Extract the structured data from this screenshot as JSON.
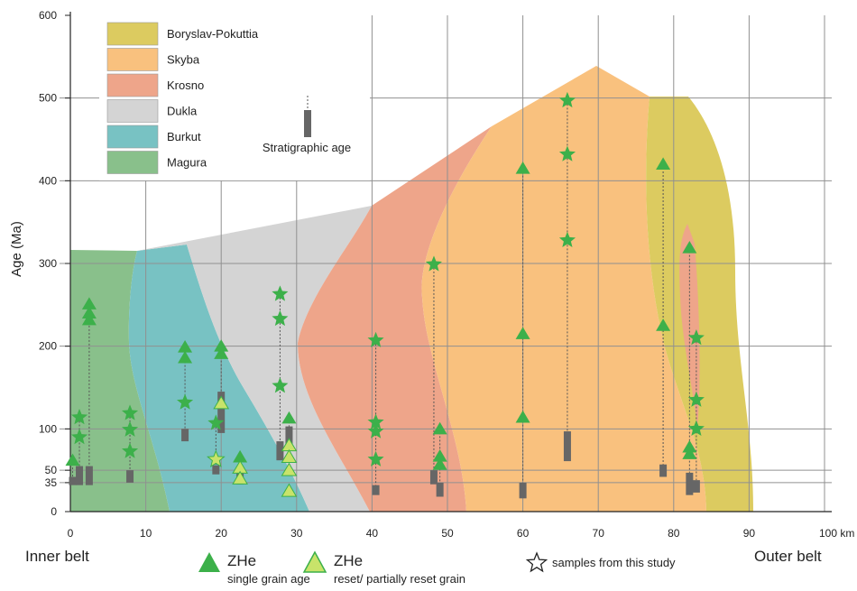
{
  "chart_data": {
    "type": "scatter",
    "ylabel": "Age (Ma)",
    "x_unit": "km",
    "xlim": [
      0,
      100
    ],
    "ylim": [
      0,
      600
    ],
    "x_ticks": [
      0,
      10,
      20,
      30,
      40,
      50,
      60,
      70,
      80,
      90,
      100
    ],
    "y_ticks": [
      0,
      35,
      50,
      100,
      200,
      300,
      400,
      500,
      600
    ],
    "x_tick_labels": [
      "0",
      "10",
      "20",
      "30",
      "40",
      "50",
      "60",
      "70",
      "80",
      "90",
      "100 km"
    ],
    "belt_labels": {
      "left": "Inner belt",
      "right": "Outer belt"
    },
    "legend_units": [
      {
        "name": "Boryslav-Pokuttia",
        "color": "#dccb60"
      },
      {
        "name": "Skyba",
        "color": "#f9c17e"
      },
      {
        "name": "Krosno",
        "color": "#eea58a"
      },
      {
        "name": "Dukla",
        "color": "#d4d4d4"
      },
      {
        "name": "Burkut",
        "color": "#78c2c3"
      },
      {
        "name": "Magura",
        "color": "#89c08b"
      }
    ],
    "legend_strat_label": "Stratigraphic age",
    "bottom_legend": {
      "zhe_single": "ZHe",
      "zhe_single_sub": "single grain age",
      "zhe_reset": "ZHe",
      "zhe_reset_sub": "reset/ partially reset grain",
      "study_samples": "samples from this study"
    },
    "colors": {
      "single": "#3cb04a",
      "reset": "#c8e36a",
      "strat": "#666666",
      "grid": "#909090"
    },
    "samples": [
      {
        "x": 0.3,
        "strat": [
          32,
          42
        ],
        "points": [
          {
            "y": 62,
            "kind": "single",
            "marker": "triangle"
          }
        ]
      },
      {
        "x": 1.2,
        "strat": [
          32,
          55
        ],
        "points": [
          {
            "y": 114,
            "kind": "single",
            "marker": "star"
          },
          {
            "y": 90,
            "kind": "single",
            "marker": "star"
          }
        ]
      },
      {
        "x": 2.5,
        "strat": [
          32,
          55
        ],
        "points": [
          {
            "y": 251,
            "kind": "single",
            "marker": "triangle"
          },
          {
            "y": 240,
            "kind": "single",
            "marker": "triangle"
          },
          {
            "y": 232,
            "kind": "single",
            "marker": "triangle"
          }
        ]
      },
      {
        "x": 7.9,
        "strat": [
          35,
          50
        ],
        "points": [
          {
            "y": 119,
            "kind": "single",
            "marker": "star"
          },
          {
            "y": 99,
            "kind": "single",
            "marker": "star"
          },
          {
            "y": 73,
            "kind": "single",
            "marker": "star"
          }
        ]
      },
      {
        "x": 15.2,
        "strat": [
          85,
          100
        ],
        "points": [
          {
            "y": 199,
            "kind": "single",
            "marker": "triangle"
          },
          {
            "y": 186,
            "kind": "single",
            "marker": "triangle"
          },
          {
            "y": 132,
            "kind": "single",
            "marker": "star"
          }
        ]
      },
      {
        "x": 19.3,
        "strat": [
          45,
          56
        ],
        "points": [
          {
            "y": 107,
            "kind": "single",
            "marker": "star"
          },
          {
            "y": 63,
            "kind": "reset",
            "marker": "star"
          }
        ]
      },
      {
        "x": 20.0,
        "strat": [
          95,
          145
        ],
        "points": [
          {
            "y": 200,
            "kind": "single",
            "marker": "triangle"
          },
          {
            "y": 191,
            "kind": "single",
            "marker": "triangle"
          },
          {
            "y": 131,
            "kind": "reset",
            "marker": "triangle"
          }
        ]
      },
      {
        "x": 22.5,
        "strat": [
          33,
          50
        ],
        "points": [
          {
            "y": 66,
            "kind": "single",
            "marker": "triangle"
          },
          {
            "y": 53,
            "kind": "reset",
            "marker": "triangle"
          },
          {
            "y": 40,
            "kind": "reset",
            "marker": "triangle"
          }
        ]
      },
      {
        "x": 27.8,
        "strat": [
          62,
          85
        ],
        "points": [
          {
            "y": 263,
            "kind": "single",
            "marker": "star"
          },
          {
            "y": 233,
            "kind": "single",
            "marker": "star"
          },
          {
            "y": 152,
            "kind": "single",
            "marker": "star"
          }
        ]
      },
      {
        "x": 29.0,
        "strat": [
          78,
          103
        ],
        "points": [
          {
            "y": 113,
            "kind": "single",
            "marker": "triangle"
          },
          {
            "y": 80,
            "kind": "reset",
            "marker": "triangle"
          },
          {
            "y": 66,
            "kind": "reset",
            "marker": "triangle"
          },
          {
            "y": 50,
            "kind": "reset",
            "marker": "triangle"
          },
          {
            "y": 25,
            "kind": "reset",
            "marker": "triangle"
          }
        ]
      },
      {
        "x": 40.5,
        "strat": [
          20,
          32
        ],
        "points": [
          {
            "y": 207,
            "kind": "single",
            "marker": "star"
          },
          {
            "y": 108,
            "kind": "single",
            "marker": "star"
          },
          {
            "y": 97,
            "kind": "single",
            "marker": "star"
          },
          {
            "y": 63,
            "kind": "single",
            "marker": "star"
          }
        ]
      },
      {
        "x": 48.2,
        "strat": [
          33,
          50
        ],
        "points": [
          {
            "y": 299,
            "kind": "single",
            "marker": "star"
          }
        ]
      },
      {
        "x": 49.0,
        "strat": [
          18,
          35
        ],
        "points": [
          {
            "y": 100,
            "kind": "single",
            "marker": "triangle"
          },
          {
            "y": 67,
            "kind": "single",
            "marker": "triangle"
          },
          {
            "y": 57,
            "kind": "single",
            "marker": "triangle"
          }
        ]
      },
      {
        "x": 60.0,
        "strat": [
          16,
          35
        ],
        "points": [
          {
            "y": 415,
            "kind": "single",
            "marker": "triangle"
          },
          {
            "y": 215,
            "kind": "single",
            "marker": "triangle"
          },
          {
            "y": 114,
            "kind": "single",
            "marker": "triangle"
          }
        ]
      },
      {
        "x": 65.9,
        "strat": [
          61,
          97
        ],
        "points": [
          {
            "y": 497,
            "kind": "single",
            "marker": "star"
          },
          {
            "y": 432,
            "kind": "single",
            "marker": "star"
          },
          {
            "y": 328,
            "kind": "single",
            "marker": "star"
          }
        ]
      },
      {
        "x": 78.6,
        "strat": [
          42,
          57
        ],
        "points": [
          {
            "y": 420,
            "kind": "single",
            "marker": "triangle"
          },
          {
            "y": 225,
            "kind": "single",
            "marker": "triangle"
          }
        ]
      },
      {
        "x": 82.1,
        "strat": [
          20,
          47
        ],
        "points": [
          {
            "y": 319,
            "kind": "single",
            "marker": "triangle"
          },
          {
            "y": 78,
            "kind": "single",
            "marker": "triangle"
          },
          {
            "y": 70,
            "kind": "single",
            "marker": "triangle"
          }
        ]
      },
      {
        "x": 83.0,
        "strat": [
          23,
          38
        ],
        "points": [
          {
            "y": 210,
            "kind": "single",
            "marker": "star"
          },
          {
            "y": 135,
            "kind": "single",
            "marker": "star"
          },
          {
            "y": 100,
            "kind": "single",
            "marker": "star"
          }
        ]
      }
    ]
  }
}
